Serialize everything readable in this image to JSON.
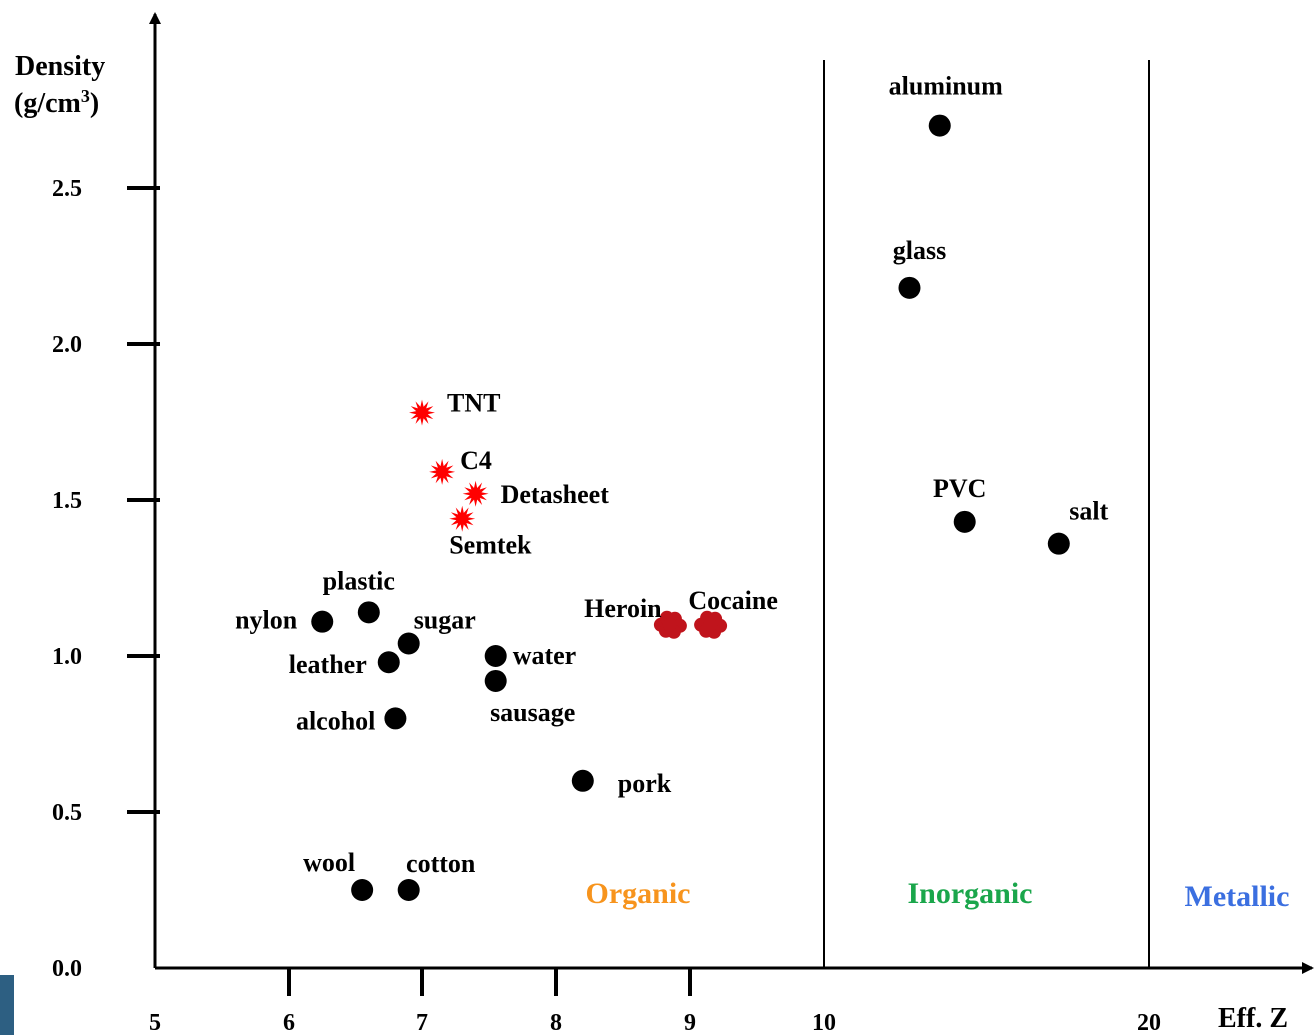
{
  "chart_data": {
    "type": "scatter",
    "title": "",
    "xlabel": "Eff. Z",
    "ylabel_line1": "Density",
    "ylabel_line2_prefix": "(g/cm",
    "ylabel_line2_sup": "3",
    "ylabel_line2_suffix": ")",
    "ylim": [
      0,
      2.8
    ],
    "x_ticks": [
      "5",
      "6",
      "7",
      "8",
      "9",
      "10",
      "20"
    ],
    "y_ticks": [
      "0.0",
      "0.5",
      "1.0",
      "1.5",
      "2.0",
      "2.5"
    ],
    "y_tick_values": [
      0.0,
      0.5,
      1.0,
      1.5,
      2.0,
      2.5
    ],
    "regions": [
      {
        "name": "Organic",
        "color": "#f7941d"
      },
      {
        "name": "Inorganic",
        "color": "#1aa64b"
      },
      {
        "name": "Metallic",
        "color": "#3b6fe0"
      }
    ],
    "region_boundaries": [
      10,
      20
    ],
    "series": [
      {
        "group": "materials",
        "color": "#000000",
        "marker": "circle",
        "points": [
          {
            "label": "nylon",
            "x": 6.25,
            "y": 1.11
          },
          {
            "label": "plastic",
            "x": 6.6,
            "y": 1.14
          },
          {
            "label": "sugar",
            "x": 6.9,
            "y": 1.04
          },
          {
            "label": "leather",
            "x": 6.75,
            "y": 0.98
          },
          {
            "label": "alcohol",
            "x": 6.8,
            "y": 0.8
          },
          {
            "label": "water",
            "x": 7.55,
            "y": 1.0
          },
          {
            "label": "sausage",
            "x": 7.55,
            "y": 0.92
          },
          {
            "label": "pork",
            "x": 8.2,
            "y": 0.6
          },
          {
            "label": "wool",
            "x": 6.55,
            "y": 0.25
          },
          {
            "label": "cotton",
            "x": 6.9,
            "y": 0.25
          },
          {
            "label": "aluminum",
            "x": 12.8,
            "y": 2.7
          },
          {
            "label": "glass",
            "x": 12.0,
            "y": 2.18
          },
          {
            "label": "PVC",
            "x": 13.5,
            "y": 1.43
          },
          {
            "label": "salt",
            "x": 16.5,
            "y": 1.36
          }
        ]
      },
      {
        "group": "explosives",
        "color": "#ff0000",
        "marker": "burst",
        "points": [
          {
            "label": "TNT",
            "x": 7.0,
            "y": 1.78
          },
          {
            "label": "C4",
            "x": 7.15,
            "y": 1.59
          },
          {
            "label": "Detasheet",
            "x": 7.4,
            "y": 1.52
          },
          {
            "label": "Semtek",
            "x": 7.3,
            "y": 1.44
          }
        ]
      },
      {
        "group": "narcotics",
        "color": "#c0141c",
        "marker": "cloud",
        "points": [
          {
            "label": "Heroin",
            "x": 8.85,
            "y": 1.1
          },
          {
            "label": "Cocaine",
            "x": 9.15,
            "y": 1.1
          }
        ]
      }
    ]
  }
}
